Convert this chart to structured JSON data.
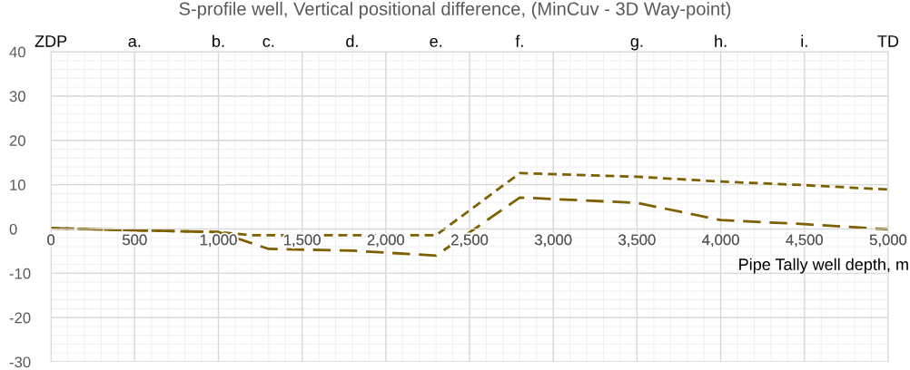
{
  "chart_data": {
    "type": "line",
    "title": "S-profile well, Vertical positional difference, (MinCuv - 3D Way-point)",
    "xlabel": "Pipe Tally well depth, m",
    "series": [
      {
        "color": "#7f6000",
        "line_style": "dashed",
        "x": [
          0,
          500,
          1000,
          1200,
          1800,
          2300,
          2800,
          3500,
          4000,
          4500,
          5000
        ],
        "values": [
          0.2,
          -0.3,
          -0.7,
          -1.4,
          -1.4,
          -1.4,
          12.6,
          11.8,
          10.7,
          9.9,
          8.9
        ]
      },
      {
        "color": "#7f6000",
        "line_style": "dashed",
        "x": [
          0,
          500,
          1000,
          1300,
          1800,
          2300,
          2800,
          3500,
          4000,
          4500,
          5000
        ],
        "values": [
          0.2,
          -0.3,
          -0.7,
          -4.5,
          -4.9,
          -6.0,
          7.1,
          5.9,
          2.0,
          1.1,
          -0.1
        ]
      }
    ],
    "annotations": [
      "ZDP",
      "a.",
      "b.",
      "c.",
      "d.",
      "e.",
      "f.",
      "g.",
      "h.",
      "i.",
      "TD"
    ],
    "xlim": [
      0,
      5000
    ],
    "ylim": [
      -30,
      40
    ],
    "xticks": [
      {
        "value": 0,
        "label": "0"
      },
      {
        "value": 500,
        "label": "500"
      },
      {
        "value": 1000,
        "label": "1,000"
      },
      {
        "value": 1500,
        "label": "1,500"
      },
      {
        "value": 2000,
        "label": "2,000"
      },
      {
        "value": 2500,
        "label": "2,500"
      },
      {
        "value": 3000,
        "label": "3,000"
      },
      {
        "value": 3500,
        "label": "3,500"
      },
      {
        "value": 4000,
        "label": "4,000"
      },
      {
        "value": 4500,
        "label": "4,500"
      },
      {
        "value": 5000,
        "label": "5,000"
      }
    ],
    "yticks": [
      -30,
      -20,
      -10,
      0,
      10,
      20,
      30,
      40
    ],
    "grid": true,
    "legend": false,
    "marker": "none"
  }
}
